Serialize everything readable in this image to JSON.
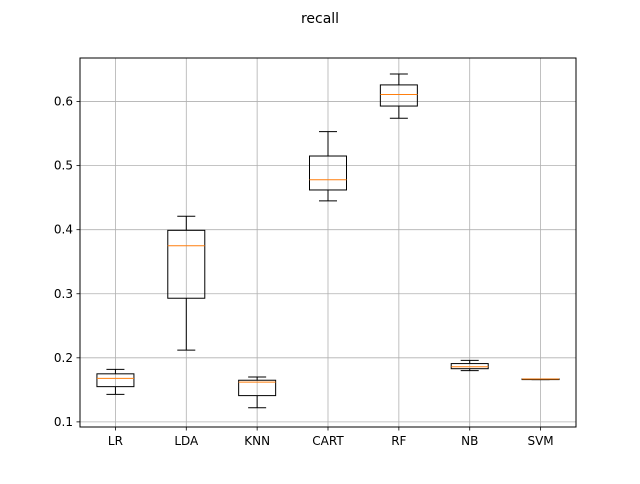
{
  "chart_data": {
    "type": "box",
    "title": "recall",
    "xlabel": "",
    "ylabel": "",
    "ylim": [
      0.092,
      0.668
    ],
    "yticks": [
      0.1,
      0.2,
      0.3,
      0.4,
      0.5,
      0.6
    ],
    "ytick_labels": [
      "0.1",
      "0.2",
      "0.3",
      "0.4",
      "0.5",
      "0.6"
    ],
    "grid": true,
    "colors": {
      "box": "#000000",
      "median": "#ff7f0e",
      "grid": "#b0b0b0"
    },
    "categories": [
      "LR",
      "LDA",
      "KNN",
      "CART",
      "RF",
      "NB",
      "SVM"
    ],
    "boxes": [
      {
        "label": "LR",
        "whisker_low": 0.143,
        "q1": 0.155,
        "median": 0.168,
        "q3": 0.175,
        "whisker_high": 0.182
      },
      {
        "label": "LDA",
        "whisker_low": 0.212,
        "q1": 0.293,
        "median": 0.375,
        "q3": 0.399,
        "whisker_high": 0.421
      },
      {
        "label": "KNN",
        "whisker_low": 0.122,
        "q1": 0.141,
        "median": 0.162,
        "q3": 0.165,
        "whisker_high": 0.17
      },
      {
        "label": "CART",
        "whisker_low": 0.445,
        "q1": 0.462,
        "median": 0.478,
        "q3": 0.515,
        "whisker_high": 0.553
      },
      {
        "label": "RF",
        "whisker_low": 0.574,
        "q1": 0.593,
        "median": 0.611,
        "q3": 0.626,
        "whisker_high": 0.643
      },
      {
        "label": "NB",
        "whisker_low": 0.18,
        "q1": 0.183,
        "median": 0.186,
        "q3": 0.191,
        "whisker_high": 0.196
      },
      {
        "label": "SVM",
        "whisker_low": 0.166,
        "q1": 0.166,
        "median": 0.167,
        "q3": 0.167,
        "whisker_high": 0.167
      }
    ]
  }
}
